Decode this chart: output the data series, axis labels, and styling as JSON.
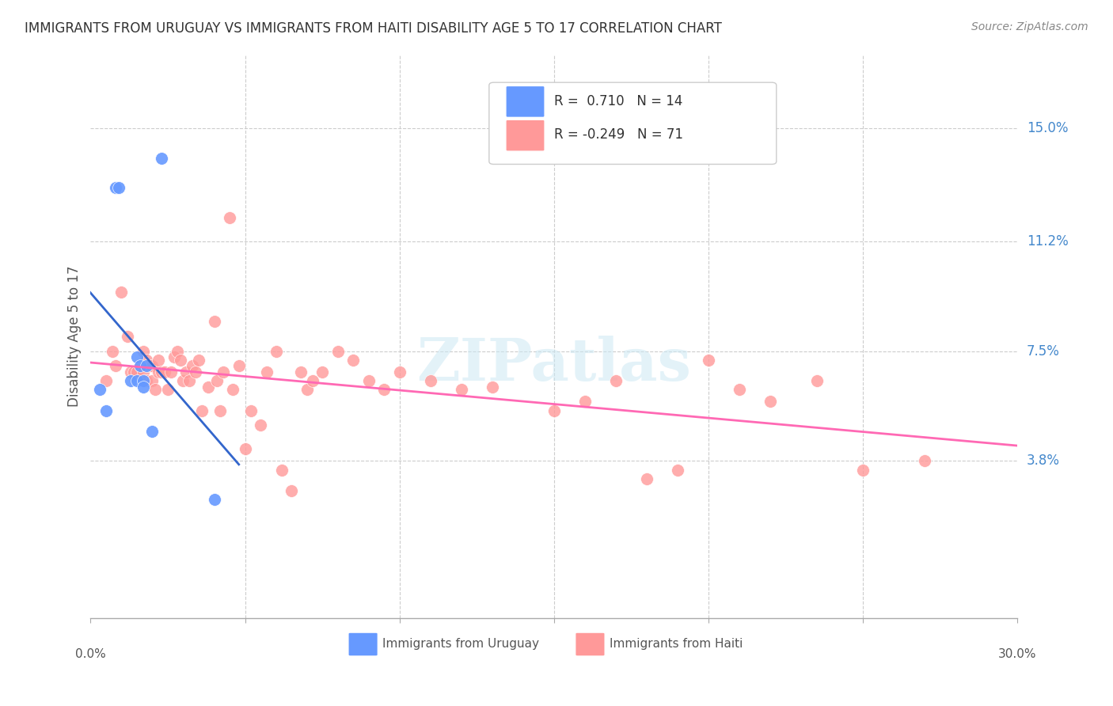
{
  "title": "IMMIGRANTS FROM URUGUAY VS IMMIGRANTS FROM HAITI DISABILITY AGE 5 TO 17 CORRELATION CHART",
  "source": "Source: ZipAtlas.com",
  "ylabel": "Disability Age 5 to 17",
  "ytick_labels": [
    "15.0%",
    "11.2%",
    "7.5%",
    "3.8%"
  ],
  "ytick_values": [
    0.15,
    0.112,
    0.075,
    0.038
  ],
  "xlim": [
    0.0,
    0.3
  ],
  "ylim": [
    -0.015,
    0.175
  ],
  "legend_r1": "R =  0.710   N = 14",
  "legend_r2": "R = -0.249   N = 71",
  "legend_label1": "Immigrants from Uruguay",
  "legend_label2": "Immigrants from Haiti",
  "color_uruguay": "#6699ff",
  "color_haiti": "#ff9999",
  "color_line_uruguay": "#3366cc",
  "color_line_haiti": "#ff69b4",
  "uruguay_x": [
    0.003,
    0.005,
    0.008,
    0.009,
    0.013,
    0.015,
    0.015,
    0.016,
    0.017,
    0.017,
    0.018,
    0.02,
    0.023,
    0.04
  ],
  "uruguay_y": [
    0.062,
    0.055,
    0.13,
    0.13,
    0.065,
    0.073,
    0.065,
    0.07,
    0.065,
    0.063,
    0.07,
    0.048,
    0.14,
    0.025
  ],
  "haiti_x": [
    0.005,
    0.007,
    0.008,
    0.01,
    0.012,
    0.013,
    0.014,
    0.015,
    0.016,
    0.017,
    0.017,
    0.018,
    0.018,
    0.019,
    0.02,
    0.02,
    0.021,
    0.022,
    0.022,
    0.023,
    0.024,
    0.025,
    0.026,
    0.027,
    0.028,
    0.029,
    0.03,
    0.031,
    0.032,
    0.033,
    0.034,
    0.035,
    0.036,
    0.038,
    0.04,
    0.041,
    0.042,
    0.043,
    0.045,
    0.046,
    0.048,
    0.05,
    0.052,
    0.055,
    0.057,
    0.06,
    0.062,
    0.065,
    0.068,
    0.07,
    0.072,
    0.075,
    0.08,
    0.085,
    0.09,
    0.095,
    0.1,
    0.11,
    0.12,
    0.13,
    0.15,
    0.16,
    0.17,
    0.18,
    0.19,
    0.2,
    0.21,
    0.22,
    0.235,
    0.25,
    0.27
  ],
  "haiti_y": [
    0.065,
    0.075,
    0.07,
    0.095,
    0.08,
    0.068,
    0.068,
    0.068,
    0.07,
    0.075,
    0.068,
    0.072,
    0.065,
    0.07,
    0.065,
    0.07,
    0.062,
    0.068,
    0.072,
    0.068,
    0.068,
    0.062,
    0.068,
    0.073,
    0.075,
    0.072,
    0.065,
    0.068,
    0.065,
    0.07,
    0.068,
    0.072,
    0.055,
    0.063,
    0.085,
    0.065,
    0.055,
    0.068,
    0.12,
    0.062,
    0.07,
    0.042,
    0.055,
    0.05,
    0.068,
    0.075,
    0.035,
    0.028,
    0.068,
    0.062,
    0.065,
    0.068,
    0.075,
    0.072,
    0.065,
    0.062,
    0.068,
    0.065,
    0.062,
    0.063,
    0.055,
    0.058,
    0.065,
    0.032,
    0.035,
    0.072,
    0.062,
    0.058,
    0.065,
    0.035,
    0.038
  ]
}
